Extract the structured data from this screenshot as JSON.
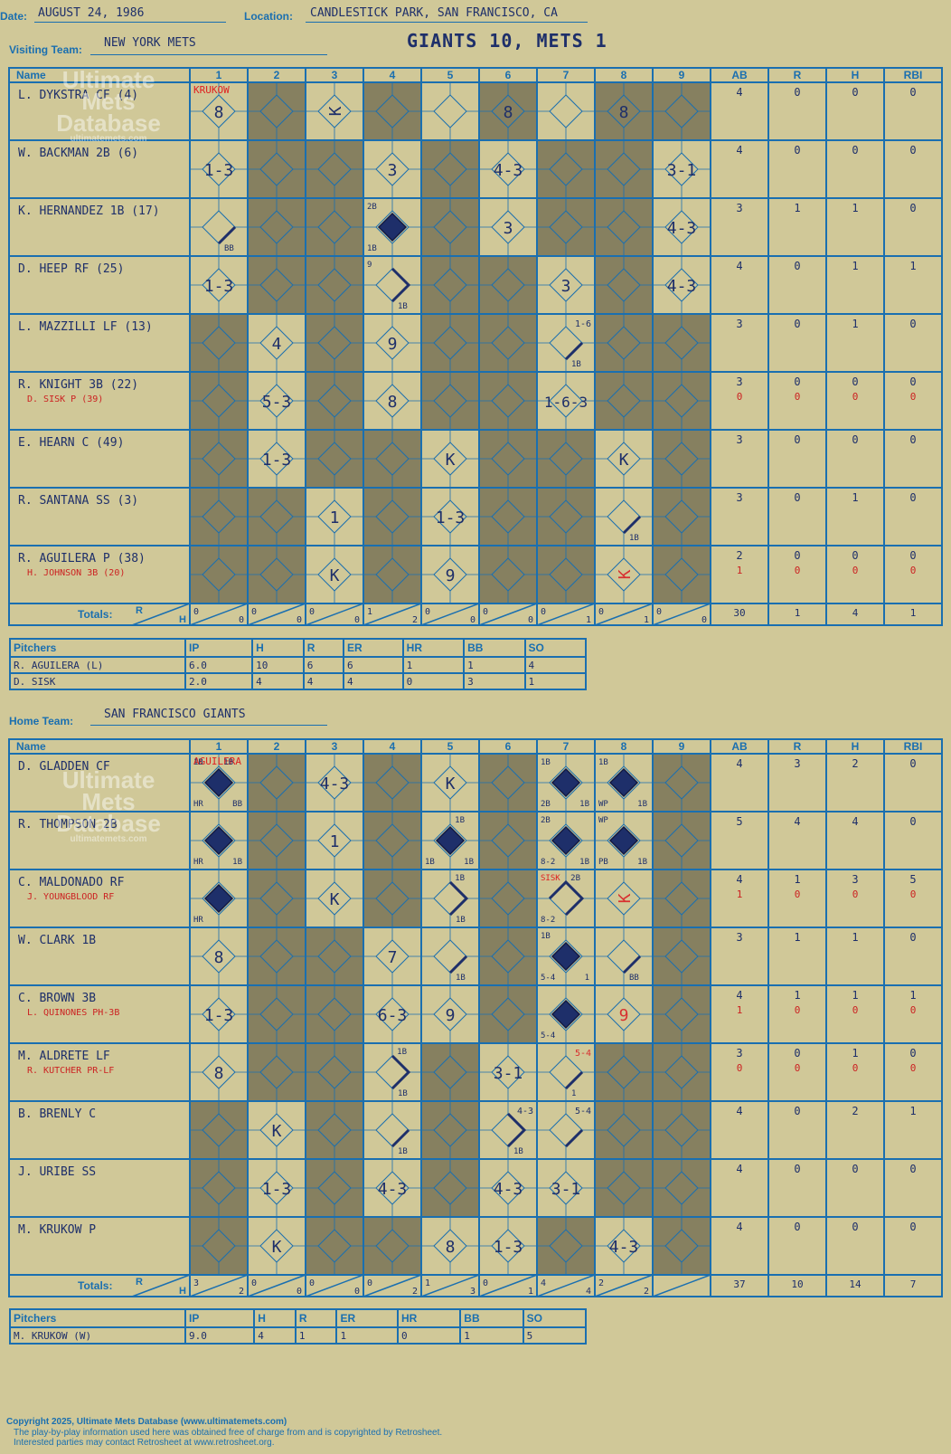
{
  "header": {
    "date_label": "Date:",
    "date": "AUGUST 24, 1986",
    "location_label": "Location:",
    "location": "CANDLESTICK PARK, SAN FRANCISCO, CA",
    "visiting_label": "Visiting Team:",
    "visiting_team": "NEW YORK METS",
    "result": "GIANTS 10, METS 1",
    "home_label": "Home Team:",
    "home_team": "SAN FRANCISCO GIANTS"
  },
  "columns": {
    "name": "Name",
    "innings": [
      "1",
      "2",
      "3",
      "4",
      "5",
      "6",
      "7",
      "8",
      "9"
    ],
    "stats": [
      "AB",
      "R",
      "H",
      "RBI"
    ],
    "totals_label": "Totals:",
    "r": "R",
    "h": "H"
  },
  "watermark": {
    "line1": "Ultimate",
    "line2": "Mets",
    "line3": "Database",
    "url": "ultimatemets.com"
  },
  "colors": {
    "paper": "#d0c898",
    "grid": "#1a6fb0",
    "shade": "#868060",
    "ink": "#1e2f6a",
    "red": "#cc2222"
  },
  "visitors": {
    "pitcher_note": {
      "inning": 0,
      "text": "KRUKOW"
    },
    "rows": [
      {
        "name": "L. DYKSTRA CF (4)",
        "sub": "",
        "stats": [
          "4",
          "0",
          "0",
          "0"
        ],
        "sub_stats": null,
        "shade": [
          0,
          1,
          0,
          1,
          0,
          1,
          0,
          1,
          1
        ],
        "cells": [
          {
            "i": 0,
            "t": "8"
          },
          {
            "i": 2,
            "t": "K",
            "r": true
          },
          {
            "i": 5,
            "t": "8"
          },
          {
            "i": 7,
            "t": "8"
          }
        ]
      },
      {
        "name": "W. BACKMAN 2B (6)",
        "sub": "",
        "stats": [
          "4",
          "0",
          "0",
          "0"
        ],
        "sub_stats": null,
        "shade": [
          0,
          1,
          1,
          0,
          1,
          0,
          1,
          1,
          0
        ],
        "cells": [
          {
            "i": 0,
            "t": "1-3"
          },
          {
            "i": 3,
            "t": "3"
          },
          {
            "i": 5,
            "t": "4-3"
          },
          {
            "i": 8,
            "t": "3-1"
          }
        ]
      },
      {
        "name": "K. HERNANDEZ 1B (17)",
        "sub": "",
        "stats": [
          "3",
          "1",
          "1",
          "0"
        ],
        "sub_stats": null,
        "shade": [
          0,
          1,
          1,
          0,
          1,
          0,
          1,
          1,
          0
        ],
        "cells": [
          {
            "i": 0,
            "t": "",
            "path": 1,
            "bl": "BB"
          },
          {
            "i": 3,
            "t": "",
            "run": 1,
            "tl": "2B",
            "bl2": "1B"
          },
          {
            "i": 5,
            "t": "3"
          },
          {
            "i": 8,
            "t": "4-3"
          }
        ]
      },
      {
        "name": "D. HEEP RF (25)",
        "sub": "",
        "stats": [
          "4",
          "0",
          "1",
          "1"
        ],
        "sub_stats": null,
        "shade": [
          0,
          1,
          1,
          0,
          1,
          1,
          0,
          1,
          0
        ],
        "cells": [
          {
            "i": 0,
            "t": "1-3"
          },
          {
            "i": 3,
            "t": "",
            "path": 2,
            "tl": "9",
            "bl": "1B"
          },
          {
            "i": 6,
            "t": "3"
          },
          {
            "i": 8,
            "t": "4-3"
          }
        ]
      },
      {
        "name": "L. MAZZILLI LF (13)",
        "sub": "",
        "stats": [
          "3",
          "0",
          "1",
          "0"
        ],
        "sub_stats": null,
        "shade": [
          1,
          0,
          1,
          0,
          1,
          1,
          0,
          1,
          1
        ],
        "cells": [
          {
            "i": 1,
            "t": "4"
          },
          {
            "i": 3,
            "t": "9"
          },
          {
            "i": 6,
            "t": "",
            "path": 1,
            "tr": "1-6",
            "bl": "1B"
          }
        ]
      },
      {
        "name": "R. KNIGHT 3B (22)",
        "sub": "D. SISK P (39)",
        "stats": [
          "3",
          "0",
          "0",
          "0"
        ],
        "sub_stats": [
          "0",
          "0",
          "0",
          "0"
        ],
        "shade": [
          1,
          0,
          1,
          0,
          1,
          1,
          0,
          1,
          1
        ],
        "cells": [
          {
            "i": 1,
            "t": "5-3"
          },
          {
            "i": 3,
            "t": "8"
          },
          {
            "i": 6,
            "t": "1-6-3"
          }
        ]
      },
      {
        "name": "E. HEARN C (49)",
        "sub": "",
        "stats": [
          "3",
          "0",
          "0",
          "0"
        ],
        "sub_stats": null,
        "shade": [
          1,
          0,
          1,
          1,
          0,
          1,
          1,
          0,
          1
        ],
        "cells": [
          {
            "i": 1,
            "t": "1-3"
          },
          {
            "i": 4,
            "t": "K"
          },
          {
            "i": 7,
            "t": "K"
          }
        ]
      },
      {
        "name": "R. SANTANA SS (3)",
        "sub": "",
        "stats": [
          "3",
          "0",
          "1",
          "0"
        ],
        "sub_stats": null,
        "shade": [
          1,
          1,
          0,
          1,
          0,
          1,
          1,
          0,
          1
        ],
        "cells": [
          {
            "i": 2,
            "t": "1"
          },
          {
            "i": 4,
            "t": "1-3"
          },
          {
            "i": 7,
            "t": "",
            "path": 1,
            "bl": "1B"
          }
        ]
      },
      {
        "name": "R. AGUILERA P (38)",
        "sub": "H. JOHNSON 3B (20)",
        "stats": [
          "2",
          "0",
          "0",
          "0"
        ],
        "sub_stats": [
          "1",
          "0",
          "0",
          "0"
        ],
        "shade": [
          1,
          1,
          0,
          1,
          0,
          1,
          1,
          0,
          1
        ],
        "cells": [
          {
            "i": 2,
            "t": "K"
          },
          {
            "i": 4,
            "t": "9"
          },
          {
            "i": 7,
            "t": "K",
            "r": true,
            "red": true
          }
        ]
      }
    ],
    "totals": {
      "inn": [
        [
          "0",
          "0"
        ],
        [
          "0",
          "0"
        ],
        [
          "0",
          "0"
        ],
        [
          "1",
          "2"
        ],
        [
          "0",
          "0"
        ],
        [
          "0",
          "0"
        ],
        [
          "0",
          "1"
        ],
        [
          "0",
          "1"
        ],
        [
          "0",
          "0"
        ]
      ],
      "stats": [
        "30",
        "1",
        "4",
        "1"
      ]
    },
    "pitchers": {
      "header": [
        "Pitchers",
        "IP",
        "H",
        "R",
        "ER",
        "HR",
        "BB",
        "SO"
      ],
      "rows": [
        [
          "R. AGUILERA (L)",
          "6.0",
          "10",
          "6",
          "6",
          "1",
          "1",
          "4"
        ],
        [
          "D. SISK",
          "2.0",
          "4",
          "4",
          "4",
          "0",
          "3",
          "1"
        ]
      ]
    }
  },
  "home": {
    "pitcher_note": {
      "inning": 0,
      "text": "AGUILERA"
    },
    "rows": [
      {
        "name": "D. GLADDEN CF",
        "sub": "",
        "stats": [
          "4",
          "3",
          "2",
          "0"
        ],
        "sub_stats": null,
        "shade": [
          0,
          1,
          0,
          1,
          0,
          1,
          0,
          0,
          1
        ],
        "cells": [
          {
            "i": 0,
            "t": "",
            "run": 1,
            "tl": "1B",
            "tr2": "1B",
            "bl2": "HR",
            "br": "BB"
          },
          {
            "i": 2,
            "t": "4-3"
          },
          {
            "i": 4,
            "t": "K"
          },
          {
            "i": 6,
            "t": "",
            "run": 1,
            "tl": "1B",
            "bl2": "2B",
            "br": "1B"
          },
          {
            "i": 7,
            "t": "",
            "run": 1,
            "tl": "1B",
            "bl2": "WP",
            "br": "1B"
          }
        ]
      },
      {
        "name": "R. THOMPSON 2B",
        "sub": "",
        "stats": [
          "5",
          "4",
          "4",
          "0"
        ],
        "sub_stats": null,
        "shade": [
          0,
          1,
          0,
          1,
          0,
          1,
          0,
          0,
          1
        ],
        "cells": [
          {
            "i": 0,
            "t": "",
            "run": 1,
            "bl2": "HR",
            "br": "1B"
          },
          {
            "i": 2,
            "t": "1"
          },
          {
            "i": 4,
            "t": "",
            "run": 1,
            "tr2": "1B",
            "bl2": "1B",
            "br": "1B"
          },
          {
            "i": 6,
            "t": "",
            "run": 1,
            "tl": "2B",
            "bl2": "8-2",
            "br": "1B"
          },
          {
            "i": 7,
            "t": "",
            "run": 1,
            "tl": "WP",
            "bl2": "PB",
            "br": "1B"
          }
        ]
      },
      {
        "name": "C. MALDONADO RF",
        "sub": "J. YOUNGBLOOD RF",
        "stats": [
          "4",
          "1",
          "3",
          "5"
        ],
        "sub_stats": [
          "1",
          "0",
          "0",
          "0"
        ],
        "shade": [
          0,
          1,
          0,
          1,
          0,
          1,
          0,
          0,
          1
        ],
        "cells": [
          {
            "i": 0,
            "t": "",
            "run": 1,
            "bl2": "HR"
          },
          {
            "i": 2,
            "t": "K"
          },
          {
            "i": 4,
            "t": "",
            "path": 2,
            "tr2": "1B",
            "bl": "1B"
          },
          {
            "i": 6,
            "t": "",
            "path": 3,
            "tl": "SISK",
            "tr2": "2B",
            "bl2": "8-2"
          },
          {
            "i": 7,
            "t": "K",
            "r": true,
            "red": true
          }
        ]
      },
      {
        "name": "W. CLARK 1B",
        "sub": "",
        "stats": [
          "3",
          "1",
          "1",
          "0"
        ],
        "sub_stats": null,
        "shade": [
          0,
          1,
          1,
          0,
          0,
          1,
          0,
          0,
          1
        ],
        "cells": [
          {
            "i": 0,
            "t": "8"
          },
          {
            "i": 3,
            "t": "7"
          },
          {
            "i": 4,
            "t": "",
            "path": 1,
            "bl": "1B"
          },
          {
            "i": 6,
            "t": "",
            "run": 1,
            "tl": "1B",
            "bl2": "5-4",
            "br": "1"
          },
          {
            "i": 7,
            "t": "",
            "path": 1,
            "bl": "BB"
          }
        ]
      },
      {
        "name": "C. BROWN 3B",
        "sub": "L. QUINONES PH-3B",
        "stats": [
          "4",
          "1",
          "1",
          "1"
        ],
        "sub_stats": [
          "1",
          "0",
          "0",
          "0"
        ],
        "shade": [
          0,
          1,
          1,
          0,
          0,
          1,
          0,
          0,
          1
        ],
        "cells": [
          {
            "i": 0,
            "t": "1-3"
          },
          {
            "i": 3,
            "t": "6-3"
          },
          {
            "i": 4,
            "t": "9"
          },
          {
            "i": 6,
            "t": "",
            "run": 1,
            "bl2": "5-4"
          },
          {
            "i": 7,
            "t": "9",
            "red": true
          }
        ]
      },
      {
        "name": "M. ALDRETE LF",
        "sub": "R. KUTCHER PR-LF",
        "stats": [
          "3",
          "0",
          "1",
          "0"
        ],
        "sub_stats": [
          "0",
          "0",
          "0",
          "0"
        ],
        "shade": [
          0,
          1,
          1,
          0,
          1,
          0,
          0,
          1,
          1
        ],
        "cells": [
          {
            "i": 0,
            "t": "8"
          },
          {
            "i": 3,
            "t": "",
            "path": 2,
            "tr2": "1B",
            "bl": "1B"
          },
          {
            "i": 5,
            "t": "3-1"
          },
          {
            "i": 6,
            "t": "",
            "path": 1,
            "tr": "5-4",
            "bl": "1",
            "redtr": true
          }
        ]
      },
      {
        "name": "B. BRENLY C",
        "sub": "",
        "stats": [
          "4",
          "0",
          "2",
          "1"
        ],
        "sub_stats": null,
        "shade": [
          1,
          0,
          1,
          0,
          1,
          0,
          0,
          1,
          1
        ],
        "cells": [
          {
            "i": 1,
            "t": "K"
          },
          {
            "i": 3,
            "t": "",
            "path": 1,
            "bl": "1B"
          },
          {
            "i": 5,
            "t": "",
            "path": 2,
            "tr": "4-3",
            "bl": "1B"
          },
          {
            "i": 6,
            "t": "",
            "path": 1,
            "tr": "5-4"
          }
        ]
      },
      {
        "name": "J. URIBE SS",
        "sub": "",
        "stats": [
          "4",
          "0",
          "0",
          "0"
        ],
        "sub_stats": null,
        "shade": [
          1,
          0,
          1,
          0,
          1,
          0,
          0,
          1,
          1
        ],
        "cells": [
          {
            "i": 1,
            "t": "1-3"
          },
          {
            "i": 3,
            "t": "4-3"
          },
          {
            "i": 5,
            "t": "4-3"
          },
          {
            "i": 6,
            "t": "3-1"
          }
        ]
      },
      {
        "name": "M. KRUKOW P",
        "sub": "",
        "stats": [
          "4",
          "0",
          "0",
          "0"
        ],
        "sub_stats": null,
        "shade": [
          1,
          0,
          1,
          1,
          0,
          0,
          1,
          0,
          1
        ],
        "cells": [
          {
            "i": 1,
            "t": "K"
          },
          {
            "i": 4,
            "t": "8"
          },
          {
            "i": 5,
            "t": "1-3"
          },
          {
            "i": 7,
            "t": "4-3"
          }
        ]
      }
    ],
    "totals": {
      "inn": [
        [
          "3",
          "2"
        ],
        [
          "0",
          "0"
        ],
        [
          "0",
          "0"
        ],
        [
          "0",
          "2"
        ],
        [
          "1",
          "3"
        ],
        [
          "0",
          "1"
        ],
        [
          "4",
          "4"
        ],
        [
          "2",
          "2"
        ],
        [
          "",
          ""
        ]
      ],
      "stats": [
        "37",
        "10",
        "14",
        "7"
      ]
    },
    "pitchers": {
      "header": [
        "Pitchers",
        "IP",
        "H",
        "R",
        "ER",
        "HR",
        "BB",
        "SO"
      ],
      "rows": [
        [
          "M. KRUKOW (W)",
          "9.0",
          "4",
          "1",
          "1",
          "0",
          "1",
          "5"
        ]
      ]
    }
  },
  "footer": {
    "line1": "Copyright 2025, Ultimate Mets Database (www.ultimatemets.com)",
    "line2": "The play-by-play information used here was obtained free of charge from and is copyrighted by Retrosheet.",
    "line3": "Interested parties may contact Retrosheet at www.retrosheet.org."
  }
}
